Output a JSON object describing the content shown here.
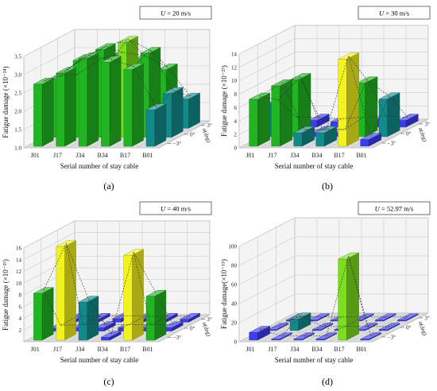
{
  "categories": [
    "J01",
    "J17",
    "J34",
    "B34",
    "B17",
    "B01"
  ],
  "depth_labels": [
    "3°",
    "0°",
    "−3°"
  ],
  "xlabel": "Serial number of stay cable",
  "zlabel": "α(deg)",
  "colors": {
    "green": "#22b422",
    "lightgreen": "#7cde1e",
    "yellow": "#f2f21e",
    "teal": "#138a8a",
    "blue": "#1f6fd0",
    "purple_blue": "#3c3cf0"
  },
  "chart_data": [
    {
      "type": "bar",
      "panel_label": "(a)",
      "legend": "U = 20 m/s",
      "legend_var": "U",
      "legend_value": "= 20 m/s",
      "ylabel": "Fatigue damage (×10⁻²⁴)",
      "ylim": [
        1.0,
        3.5
      ],
      "yticks": [
        "1.0",
        "1.5",
        "2.0",
        "2.5",
        "3.0",
        "3.5"
      ],
      "series": [
        {
          "name": "3°",
          "values": [
            2.4,
            2.8,
            3.0,
            2.9,
            2.6,
            1.8
          ]
        },
        {
          "name": "0°",
          "values": [
            2.6,
            3.1,
            3.4,
            3.6,
            3.3,
            2.2
          ]
        },
        {
          "name": "−3°",
          "values": [
            2.7,
            3.0,
            3.4,
            3.3,
            3.1,
            2.0
          ]
        }
      ]
    },
    {
      "type": "bar",
      "panel_label": "(b)",
      "legend": "U = 30 m/s",
      "legend_var": "U",
      "legend_value": "= 30 m/s",
      "ylabel": "Fatigue damage (×10⁻²³)",
      "ylim": [
        0,
        14
      ],
      "yticks": [
        "0",
        "2",
        "4",
        "6",
        "8",
        "10",
        "12",
        "14"
      ],
      "series": [
        {
          "name": "3°",
          "values": [
            1.0,
            1.0,
            0.8,
            1.0,
            1.2,
            1.0
          ]
        },
        {
          "name": "0°",
          "values": [
            5.0,
            8.5,
            0.6,
            0.6,
            8.0,
            5.6
          ]
        },
        {
          "name": "−3°",
          "values": [
            7.0,
            9.0,
            2.0,
            2.0,
            13.0,
            1.0
          ]
        }
      ]
    },
    {
      "type": "bar",
      "panel_label": "(c)",
      "legend": "U = 40 m/s",
      "legend_var": "U",
      "legend_value": "= 40 m/s",
      "ylabel": "Fatigue damage (×10⁻²³)",
      "ylim": [
        0,
        16
      ],
      "yticks": [
        "2",
        "4",
        "6",
        "8",
        "10",
        "12",
        "14",
        "16"
      ],
      "series": [
        {
          "name": "3°",
          "values": [
            0.5,
            0.5,
            0.6,
            0.5,
            0.5,
            0.5
          ]
        },
        {
          "name": "0°",
          "values": [
            0.5,
            0.6,
            0.6,
            0.6,
            0.6,
            0.6
          ]
        },
        {
          "name": "−3°",
          "values": [
            8.0,
            16.0,
            6.5,
            0.5,
            14.5,
            7.5
          ]
        }
      ]
    },
    {
      "type": "bar",
      "panel_label": "(d)",
      "legend": "U = 52.97 m/s",
      "legend_var": "U",
      "legend_value": "= 52.97 m/s",
      "ylabel": "Fatigue damage(×10⁻¹⁵)",
      "ylim": [
        0,
        100
      ],
      "yticks": [
        "0",
        "20",
        "40",
        "60",
        "80",
        "100"
      ],
      "series": [
        {
          "name": "3°",
          "values": [
            1,
            1,
            1,
            1,
            1,
            1
          ]
        },
        {
          "name": "0°",
          "values": [
            1,
            12,
            1,
            1,
            1,
            1
          ]
        },
        {
          "name": "−3°",
          "values": [
            8,
            1,
            1,
            1,
            85,
            1
          ]
        }
      ]
    }
  ]
}
